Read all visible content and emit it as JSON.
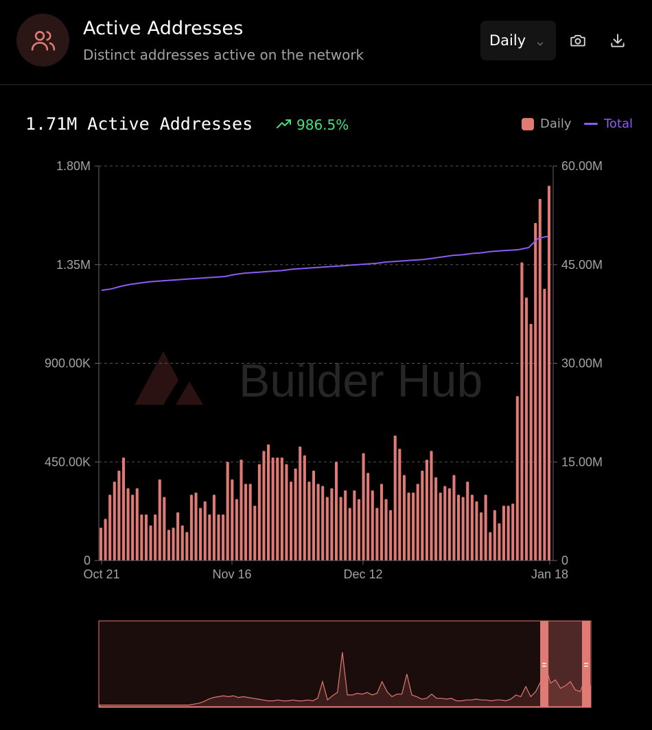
{
  "header": {
    "title": "Active Addresses",
    "subtitle": "Distinct addresses active on the network",
    "period_selected": "Daily",
    "avatar_icon": "users-icon",
    "camera_icon": "camera-icon",
    "download_icon": "download-icon"
  },
  "summary": {
    "value_label": "1.71M Active Addresses",
    "change": "986.5%",
    "change_icon": "trending-up-icon"
  },
  "legend": {
    "daily": "Daily",
    "total": "Total"
  },
  "watermark": "Builder Hub",
  "colors": {
    "bar": "#e07a75",
    "line": "#8b5cf6",
    "positive": "#4ade80",
    "background": "#000000"
  },
  "chart_data": [
    {
      "type": "bar",
      "series": [
        {
          "name": "Daily",
          "axis": "left",
          "values": [
            150000,
            190000,
            300000,
            360000,
            410000,
            470000,
            330000,
            300000,
            330000,
            210000,
            210000,
            160000,
            210000,
            370000,
            290000,
            140000,
            150000,
            220000,
            160000,
            130000,
            300000,
            310000,
            240000,
            270000,
            210000,
            300000,
            210000,
            210000,
            450000,
            370000,
            280000,
            460000,
            350000,
            350000,
            250000,
            440000,
            500000,
            530000,
            470000,
            470000,
            470000,
            440000,
            360000,
            420000,
            520000,
            480000,
            360000,
            410000,
            350000,
            340000,
            290000,
            330000,
            450000,
            290000,
            320000,
            240000,
            320000,
            280000,
            490000,
            400000,
            320000,
            240000,
            350000,
            280000,
            230000,
            570000,
            510000,
            390000,
            310000,
            310000,
            350000,
            410000,
            460000,
            500000,
            380000,
            310000,
            340000,
            330000,
            390000,
            300000,
            290000,
            360000,
            300000,
            270000,
            220000,
            300000,
            130000,
            230000,
            170000,
            250000,
            250000,
            260000,
            750000,
            1360000,
            1200000,
            1080000,
            1540000,
            1650000,
            1240000,
            1710000
          ]
        },
        {
          "name": "Total",
          "axis": "right",
          "type": "line",
          "values": [
            41100000,
            41300000,
            41700000,
            42000000,
            42200000,
            42400000,
            42500000,
            42600000,
            42700000,
            42800000,
            42900000,
            43000000,
            43100000,
            43200000,
            43500000,
            43700000,
            43800000,
            43900000,
            44000000,
            44100000,
            44300000,
            44400000,
            44500000,
            44600000,
            44700000,
            44800000,
            44900000,
            45000000,
            45100000,
            45200000,
            45400000,
            45500000,
            45600000,
            45700000,
            45800000,
            46000000,
            46200000,
            46400000,
            46500000,
            46700000,
            46800000,
            47000000,
            47100000,
            47200000,
            47300000,
            47600000,
            49000000,
            49300000
          ]
        }
      ],
      "x_tick_labels": [
        "Oct 21",
        "Nov 16",
        "Dec 12",
        "Jan 18"
      ],
      "y_left_ticks": [
        "1.80M",
        "1.35M",
        "900.00K",
        "450.00K",
        "0"
      ],
      "y_right_ticks": [
        "60.00M",
        "45.00M",
        "30.00M",
        "15.00M",
        "0"
      ],
      "y_left_range": [
        0,
        1800000
      ],
      "y_right_range": [
        0,
        60000000
      ],
      "grid": true,
      "legend_position": "top-right"
    },
    {
      "type": "area",
      "role": "range-navigator",
      "values": [
        0.02,
        0.02,
        0.02,
        0.02,
        0.02,
        0.02,
        0.02,
        0.02,
        0.02,
        0.02,
        0.02,
        0.02,
        0.02,
        0.02,
        0.02,
        0.02,
        0.02,
        0.02,
        0.02,
        0.03,
        0.04,
        0.06,
        0.09,
        0.11,
        0.12,
        0.13,
        0.12,
        0.13,
        0.11,
        0.12,
        0.11,
        0.1,
        0.09,
        0.08,
        0.07,
        0.07,
        0.08,
        0.07,
        0.07,
        0.08,
        0.07,
        0.07,
        0.08,
        0.07,
        0.1,
        0.3,
        0.08,
        0.13,
        0.17,
        0.65,
        0.14,
        0.14,
        0.16,
        0.15,
        0.17,
        0.14,
        0.16,
        0.3,
        0.18,
        0.12,
        0.15,
        0.15,
        0.39,
        0.14,
        0.12,
        0.09,
        0.1,
        0.15,
        0.1,
        0.1,
        0.09,
        0.1,
        0.07,
        0.07,
        0.08,
        0.08,
        0.09,
        0.08,
        0.08,
        0.07,
        0.08,
        0.08,
        0.07,
        0.09,
        0.14,
        0.12,
        0.24,
        0.12,
        0.18,
        0.3,
        0.48,
        0.28,
        0.32,
        0.22,
        0.25,
        0.3,
        0.2,
        0.18,
        0.35,
        0.25
      ],
      "selected_range": [
        0.94,
        1.0
      ]
    }
  ]
}
